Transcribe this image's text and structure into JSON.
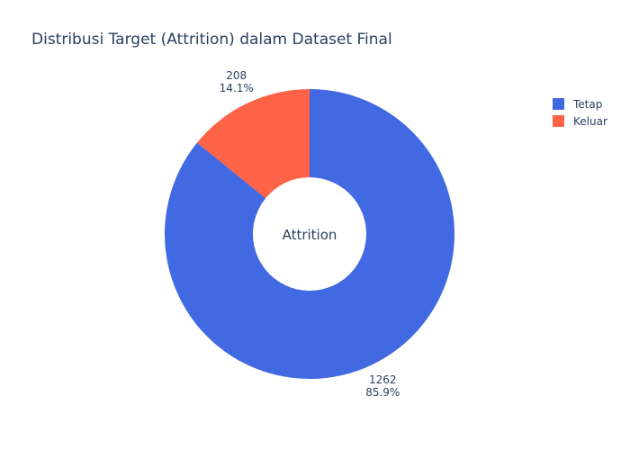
{
  "chart_data": {
    "type": "pie",
    "title": "Distribusi Target (Attrition) dalam Dataset Final",
    "center_label": "Attrition",
    "hole": true,
    "legend_position": "top-right",
    "slices": [
      {
        "label": "Tetap",
        "value": 1262,
        "percent_text": "85.9%",
        "color": "#4169E1"
      },
      {
        "label": "Keluar",
        "value": 208,
        "percent_text": "14.1%",
        "color": "#FF6347"
      }
    ]
  }
}
